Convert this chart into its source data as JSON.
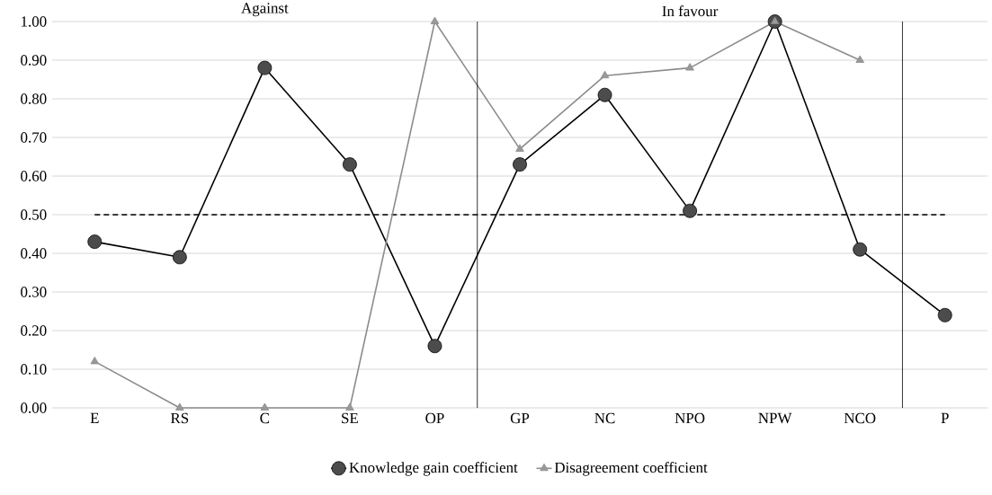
{
  "chart_data": {
    "type": "line",
    "categories": [
      "E",
      "RS",
      "C",
      "SE",
      "OP",
      "GP",
      "NC",
      "NPO",
      "NPW",
      "NCO",
      "P"
    ],
    "series": [
      {
        "name": "Knowledge gain coefficient",
        "color": "#000000",
        "marker": "circle",
        "values": [
          0.43,
          0.39,
          0.88,
          0.63,
          0.16,
          0.63,
          0.81,
          0.51,
          1.0,
          0.41,
          0.24
        ]
      },
      {
        "name": "Disagreement coefficient",
        "color": "#8c8c8c",
        "marker": "triangle",
        "values": [
          0.12,
          0,
          0,
          0,
          1.0,
          0.67,
          0.86,
          0.88,
          1.0,
          0.9,
          null
        ]
      }
    ],
    "ylim": [
      0,
      1
    ],
    "yticks": [
      {
        "value": 0,
        "label": "0.00"
      },
      {
        "value": 0.1,
        "label": "0.10"
      },
      {
        "value": 0.2,
        "label": "0.20"
      },
      {
        "value": 0.3,
        "label": "0.30"
      },
      {
        "value": 0.4,
        "label": "0.40"
      },
      {
        "value": 0.5,
        "label": "0.50"
      },
      {
        "value": 0.6,
        "label": "0.60"
      },
      {
        "value": 0.7,
        "label": "0.70"
      },
      {
        "value": 0.8,
        "label": "0.80"
      },
      {
        "value": 0.9,
        "label": "0.90"
      },
      {
        "value": 1,
        "label": "1.00"
      }
    ],
    "ref_lines": [
      {
        "axis": "y",
        "value": 0.5,
        "color": "#000000",
        "line_style": "dashed"
      }
    ],
    "annotations": [
      "Against",
      "In favour"
    ],
    "grid": "y",
    "legend": "bottom",
    "line_style": "solid"
  }
}
